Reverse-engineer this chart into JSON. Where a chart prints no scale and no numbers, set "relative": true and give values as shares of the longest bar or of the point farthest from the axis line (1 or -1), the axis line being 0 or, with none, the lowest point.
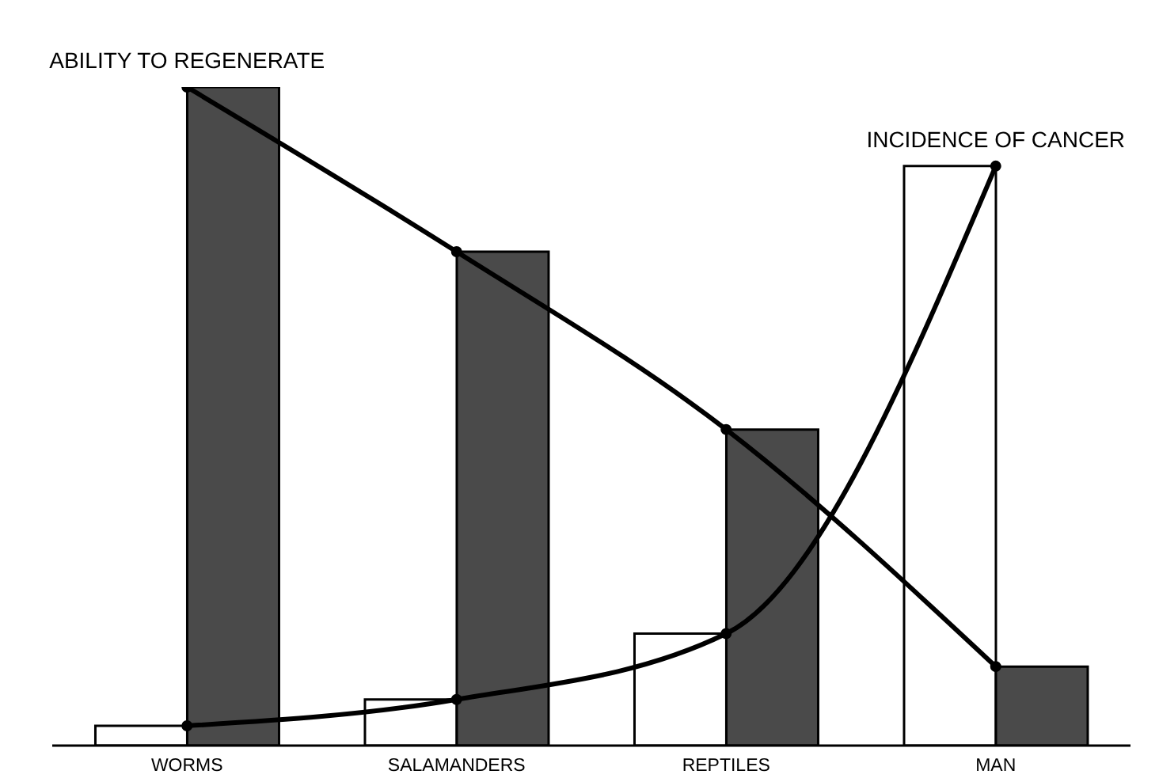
{
  "chart_data": {
    "type": "bar",
    "relative": true,
    "categories": [
      "WORMS",
      "SALAMANDERS",
      "REPTILES",
      "MAN"
    ],
    "series": [
      {
        "color": "#ffffff",
        "values": [
          0.03,
          0.07,
          0.17,
          0.88
        ]
      },
      {
        "color": "#4a4a4a",
        "values": [
          1,
          0.75,
          0.48,
          0.12
        ]
      },
      {
        "type": "line",
        "name": "INCIDENCE OF CANCER",
        "color": "#000000",
        "values": [
          0.03,
          0.07,
          0.17,
          0.88
        ]
      },
      {
        "type": "line",
        "name": "ABILITY TO REGENERATE",
        "color": "#000000",
        "values": [
          1,
          0.75,
          0.48,
          0.12
        ]
      }
    ],
    "marker": "circle",
    "line_style": "solid"
  }
}
